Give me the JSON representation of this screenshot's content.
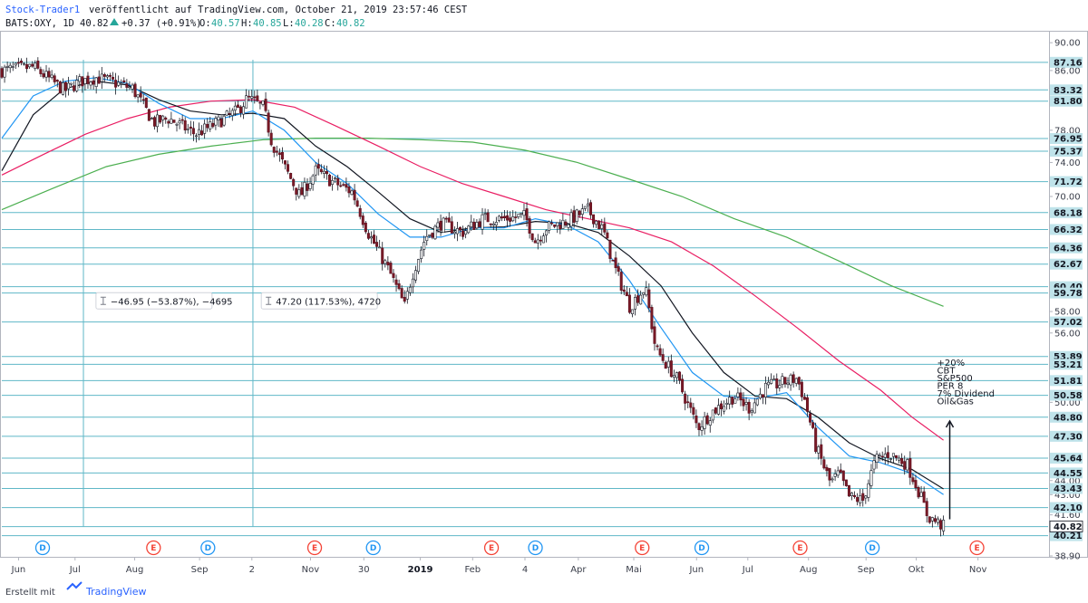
{
  "header": {
    "author": "Stock-Trader1",
    "published": "veröffentlicht auf TradingView.com, October 21, 2019 23:57:46 CEST",
    "symbol": "BATS:OXY, 1D",
    "last": "40.82",
    "change": "+0.37 (+0.91%)",
    "o_label": "O:",
    "o_value": "40.57",
    "h_label": "H:",
    "h_value": "40.85",
    "l_label": "L:",
    "l_value": "40.28",
    "c_label": "C:",
    "c_value": "40.82",
    "up_color": "#26a69a"
  },
  "footer": {
    "created_with": "Erstellt mit",
    "brand": "TradingView"
  },
  "chart_data": {
    "type": "candlestick",
    "symbol": "BATS:OXY",
    "interval": "1D",
    "log_scale": true,
    "y_range": [
      38.9,
      91.5
    ],
    "y_ticks": [
      90.0,
      86.0,
      78.0,
      74.0,
      70.0,
      58.0,
      56.0,
      50.0,
      44.0,
      43.0,
      41.6,
      38.9
    ],
    "y_tick_labels": [
      "90.00",
      "86.00",
      "78.00",
      "74.00",
      "70.00",
      "58.00",
      "56.00",
      "50.00",
      "44.00",
      "43.00",
      "41.60",
      "38.90"
    ],
    "x_labels": [
      {
        "label": "Jun",
        "t": 0.016,
        "bold": false
      },
      {
        "label": "Jul",
        "t": 0.07,
        "bold": false
      },
      {
        "label": "Aug",
        "t": 0.127,
        "bold": false
      },
      {
        "label": "Sep",
        "t": 0.189,
        "bold": false
      },
      {
        "label": "2",
        "t": 0.239,
        "bold": false
      },
      {
        "label": "Nov",
        "t": 0.295,
        "bold": false
      },
      {
        "label": "30",
        "t": 0.346,
        "bold": false
      },
      {
        "label": "2019",
        "t": 0.4,
        "bold": true
      },
      {
        "label": "Feb",
        "t": 0.45,
        "bold": false
      },
      {
        "label": "4",
        "t": 0.5,
        "bold": false
      },
      {
        "label": "Apr",
        "t": 0.551,
        "bold": false
      },
      {
        "label": "Mai",
        "t": 0.604,
        "bold": false
      },
      {
        "label": "Jun",
        "t": 0.664,
        "bold": false
      },
      {
        "label": "Jul",
        "t": 0.713,
        "bold": false
      },
      {
        "label": "Aug",
        "t": 0.771,
        "bold": false
      },
      {
        "label": "Sep",
        "t": 0.826,
        "bold": false
      },
      {
        "label": "Okt",
        "t": 0.874,
        "bold": false
      },
      {
        "label": "Nov",
        "t": 0.933,
        "bold": false
      }
    ],
    "horizontal_levels": [
      87.16,
      83.32,
      81.8,
      76.95,
      75.37,
      71.72,
      68.18,
      66.32,
      64.36,
      62.67,
      60.4,
      59.78,
      57.02,
      53.89,
      53.21,
      51.81,
      50.58,
      48.8,
      47.3,
      45.64,
      44.55,
      43.43,
      42.1,
      40.81,
      40.21
    ],
    "level_labels": [
      "87.16",
      "83.32",
      "81.80",
      "76.95",
      "75.37",
      "71.72",
      "68.18",
      "66.32",
      "64.36",
      "62.67",
      "60.40",
      "59.78",
      "57.02",
      "53.89",
      "53.21",
      "51.81",
      "50.58",
      "48.80",
      "47.30",
      "45.64",
      "44.55",
      "43.43",
      "42.10",
      "40.81",
      "40.21"
    ],
    "last_price": 40.82,
    "last_price_label": "40.82",
    "vertical_lines_t": [
      0.078,
      0.24
    ],
    "measurements": [
      {
        "text": "−46.95 (−53.87%), −4695",
        "t": 0.09,
        "price": 58.5
      },
      {
        "text": "47.20 (117.53%), 4720",
        "t": 0.248,
        "price": 58.5
      }
    ],
    "annotation": {
      "lines": [
        "+20%",
        "CBT",
        "S&P500",
        "PER 8",
        "7% Dividend",
        "Oil&Gas"
      ],
      "arrow_t": 0.906,
      "arrow_from": 41.3,
      "arrow_to": 48.5
    },
    "events": [
      {
        "type": "D",
        "t": 0.039
      },
      {
        "type": "E",
        "t": 0.145
      },
      {
        "type": "D",
        "t": 0.197
      },
      {
        "type": "E",
        "t": 0.299
      },
      {
        "type": "D",
        "t": 0.355
      },
      {
        "type": "E",
        "t": 0.468
      },
      {
        "type": "D",
        "t": 0.51
      },
      {
        "type": "E",
        "t": 0.612
      },
      {
        "type": "D",
        "t": 0.669
      },
      {
        "type": "E",
        "t": 0.763
      },
      {
        "type": "D",
        "t": 0.832
      },
      {
        "type": "E",
        "t": 0.932
      }
    ],
    "close_path": [
      [
        0.0,
        86
      ],
      [
        0.03,
        86.5
      ],
      [
        0.06,
        83.2
      ],
      [
        0.075,
        84.5
      ],
      [
        0.09,
        85
      ],
      [
        0.11,
        84.2
      ],
      [
        0.125,
        83.5
      ],
      [
        0.145,
        79
      ],
      [
        0.16,
        79.5
      ],
      [
        0.185,
        77.5
      ],
      [
        0.2,
        78.5
      ],
      [
        0.225,
        80.5
      ],
      [
        0.235,
        82.2
      ],
      [
        0.25,
        81
      ],
      [
        0.258,
        76.5
      ],
      [
        0.27,
        73.5
      ],
      [
        0.285,
        70
      ],
      [
        0.3,
        73
      ],
      [
        0.315,
        71.8
      ],
      [
        0.335,
        70.5
      ],
      [
        0.35,
        66
      ],
      [
        0.37,
        62
      ],
      [
        0.385,
        58.5
      ],
      [
        0.392,
        61.5
      ],
      [
        0.405,
        65.5
      ],
      [
        0.42,
        67
      ],
      [
        0.44,
        66
      ],
      [
        0.46,
        67.5
      ],
      [
        0.48,
        67.5
      ],
      [
        0.5,
        67.8
      ],
      [
        0.51,
        65
      ],
      [
        0.52,
        66.5
      ],
      [
        0.54,
        67.2
      ],
      [
        0.56,
        68.5
      ],
      [
        0.575,
        66.2
      ],
      [
        0.585,
        62.5
      ],
      [
        0.6,
        58.5
      ],
      [
        0.615,
        60.3
      ],
      [
        0.625,
        54.5
      ],
      [
        0.645,
        52
      ],
      [
        0.665,
        48
      ],
      [
        0.68,
        49.3
      ],
      [
        0.7,
        50.5
      ],
      [
        0.715,
        49.5
      ],
      [
        0.73,
        51.2
      ],
      [
        0.76,
        52
      ],
      [
        0.768,
        50
      ],
      [
        0.778,
        46.5
      ],
      [
        0.792,
        43.8
      ],
      [
        0.8,
        44.5
      ],
      [
        0.81,
        42.8
      ],
      [
        0.823,
        42.6
      ],
      [
        0.835,
        45.5
      ],
      [
        0.848,
        46
      ],
      [
        0.865,
        45.2
      ],
      [
        0.875,
        43.5
      ],
      [
        0.885,
        41.5
      ],
      [
        0.9,
        40.82
      ]
    ],
    "series": [
      {
        "name": "",
        "color": "#131722",
        "points": [
          [
            0.0,
            73.0
          ],
          [
            0.03,
            80.0
          ],
          [
            0.06,
            83.5
          ],
          [
            0.09,
            84.5
          ],
          [
            0.12,
            84.0
          ],
          [
            0.15,
            82.0
          ],
          [
            0.18,
            80.5
          ],
          [
            0.21,
            80.0
          ],
          [
            0.24,
            80.2
          ],
          [
            0.27,
            79.5
          ],
          [
            0.3,
            76.0
          ],
          [
            0.33,
            73.5
          ],
          [
            0.36,
            70.5
          ],
          [
            0.39,
            67.5
          ],
          [
            0.42,
            66.0
          ],
          [
            0.45,
            66.5
          ],
          [
            0.48,
            66.6
          ],
          [
            0.51,
            67.2
          ],
          [
            0.54,
            67.0
          ],
          [
            0.57,
            66.0
          ],
          [
            0.6,
            63.5
          ],
          [
            0.63,
            60.5
          ],
          [
            0.66,
            56.0
          ],
          [
            0.69,
            52.5
          ],
          [
            0.72,
            50.5
          ],
          [
            0.75,
            50.3
          ],
          [
            0.78,
            48.8
          ],
          [
            0.81,
            46.8
          ],
          [
            0.84,
            45.6
          ],
          [
            0.87,
            44.8
          ],
          [
            0.9,
            43.4
          ]
        ]
      },
      {
        "name": "",
        "color": "#2196f3",
        "points": [
          [
            0.0,
            77.0
          ],
          [
            0.03,
            82.5
          ],
          [
            0.06,
            84.5
          ],
          [
            0.09,
            85.0
          ],
          [
            0.12,
            84.2
          ],
          [
            0.15,
            81.5
          ],
          [
            0.18,
            79.5
          ],
          [
            0.21,
            79.5
          ],
          [
            0.24,
            80.5
          ],
          [
            0.27,
            78.0
          ],
          [
            0.3,
            74.0
          ],
          [
            0.33,
            71.5
          ],
          [
            0.36,
            68.0
          ],
          [
            0.39,
            65.5
          ],
          [
            0.42,
            65.5
          ],
          [
            0.45,
            66.5
          ],
          [
            0.48,
            66.5
          ],
          [
            0.51,
            67.5
          ],
          [
            0.54,
            66.8
          ],
          [
            0.57,
            65.0
          ],
          [
            0.6,
            61.0
          ],
          [
            0.63,
            56.5
          ],
          [
            0.66,
            52.5
          ],
          [
            0.69,
            50.5
          ],
          [
            0.72,
            50.3
          ],
          [
            0.75,
            50.8
          ],
          [
            0.78,
            48.0
          ],
          [
            0.81,
            45.8
          ],
          [
            0.84,
            45.3
          ],
          [
            0.87,
            44.5
          ],
          [
            0.9,
            43.0
          ]
        ]
      },
      {
        "name": "",
        "color": "#e91e63",
        "points": [
          [
            0.0,
            72.5
          ],
          [
            0.04,
            75.0
          ],
          [
            0.08,
            77.5
          ],
          [
            0.12,
            79.5
          ],
          [
            0.16,
            81.0
          ],
          [
            0.2,
            81.8
          ],
          [
            0.24,
            82.0
          ],
          [
            0.28,
            81.0
          ],
          [
            0.32,
            78.5
          ],
          [
            0.36,
            76.0
          ],
          [
            0.4,
            73.5
          ],
          [
            0.44,
            71.5
          ],
          [
            0.48,
            70.0
          ],
          [
            0.52,
            68.5
          ],
          [
            0.56,
            67.5
          ],
          [
            0.6,
            66.5
          ],
          [
            0.64,
            65.0
          ],
          [
            0.68,
            62.5
          ],
          [
            0.72,
            59.5
          ],
          [
            0.76,
            56.5
          ],
          [
            0.8,
            53.5
          ],
          [
            0.84,
            51.0
          ],
          [
            0.87,
            48.8
          ],
          [
            0.9,
            47.0
          ]
        ]
      },
      {
        "name": "",
        "color": "#4caf50",
        "points": [
          [
            0.0,
            68.5
          ],
          [
            0.05,
            71.0
          ],
          [
            0.1,
            73.5
          ],
          [
            0.15,
            75.0
          ],
          [
            0.2,
            76.0
          ],
          [
            0.25,
            76.8
          ],
          [
            0.3,
            77.0
          ],
          [
            0.35,
            77.0
          ],
          [
            0.4,
            76.8
          ],
          [
            0.45,
            76.5
          ],
          [
            0.5,
            75.5
          ],
          [
            0.55,
            74.0
          ],
          [
            0.6,
            72.0
          ],
          [
            0.65,
            70.0
          ],
          [
            0.7,
            67.5
          ],
          [
            0.75,
            65.5
          ],
          [
            0.8,
            63.0
          ],
          [
            0.85,
            60.5
          ],
          [
            0.9,
            58.5
          ]
        ]
      }
    ]
  }
}
